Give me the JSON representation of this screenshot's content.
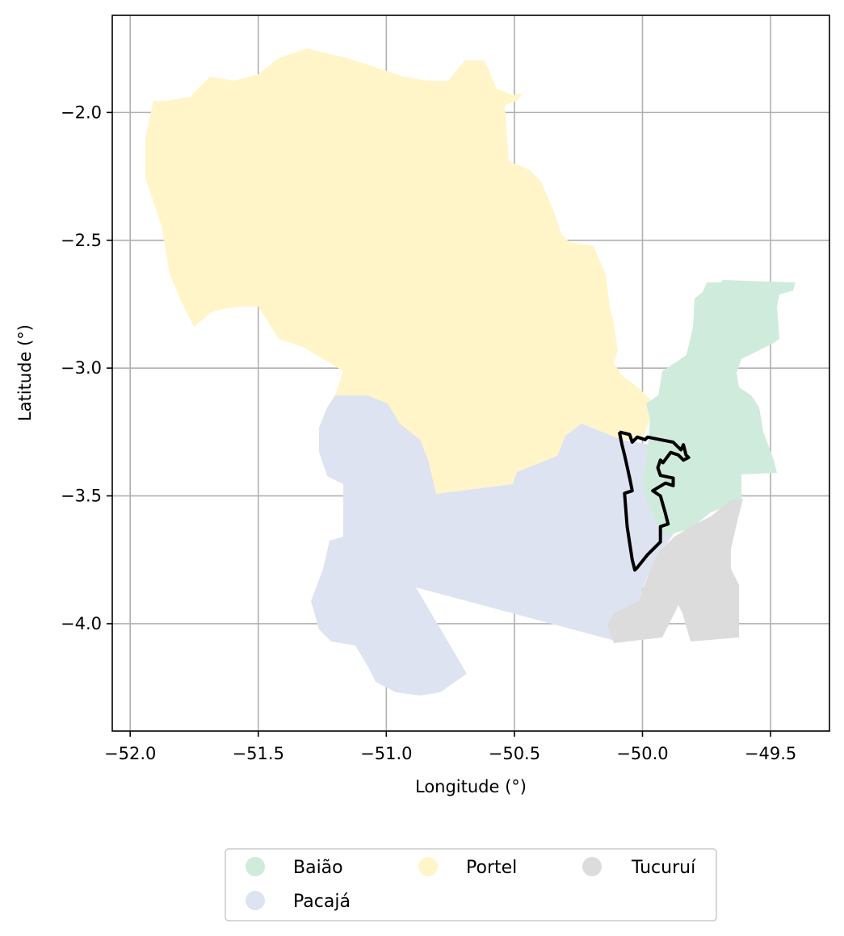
{
  "chart_data": {
    "type": "map",
    "xlabel": "Longitude (°)",
    "ylabel": "Latitude (°)",
    "xlim": [
      -52.07,
      -49.27
    ],
    "ylim": [
      -4.42,
      -1.62
    ],
    "x_ticks": [
      {
        "value": -52.0,
        "label": "−52.0"
      },
      {
        "value": -51.5,
        "label": "−51.5"
      },
      {
        "value": -51.0,
        "label": "−51.0"
      },
      {
        "value": -50.5,
        "label": "−50.5"
      },
      {
        "value": -50.0,
        "label": "−50.0"
      },
      {
        "value": -49.5,
        "label": "−49.5"
      }
    ],
    "y_ticks": [
      {
        "value": -2.0,
        "label": "−2.0"
      },
      {
        "value": -2.5,
        "label": "−2.5"
      },
      {
        "value": -3.0,
        "label": "−3.0"
      },
      {
        "value": -3.5,
        "label": "−3.5"
      },
      {
        "value": -4.0,
        "label": "−4.0"
      }
    ],
    "grid": true,
    "legend_position": "bottom-center",
    "regions": [
      {
        "name": "Baião",
        "color": "#cfebdc"
      },
      {
        "name": "Pacajá",
        "color": "#dee3f1"
      },
      {
        "name": "Portel",
        "color": "#fff5c9"
      },
      {
        "name": "Tucuruí",
        "color": "#dcdcdc"
      }
    ],
    "outline": {
      "color": "#000000",
      "points": [
        [
          -50.09,
          -3.25
        ],
        [
          -50.05,
          -3.26
        ],
        [
          -50.04,
          -3.29
        ],
        [
          -50.02,
          -3.27
        ],
        [
          -49.99,
          -3.28
        ],
        [
          -49.98,
          -3.27
        ],
        [
          -49.93,
          -3.28
        ],
        [
          -49.88,
          -3.29
        ],
        [
          -49.85,
          -3.32
        ],
        [
          -49.84,
          -3.3
        ],
        [
          -49.83,
          -3.34
        ],
        [
          -49.82,
          -3.35
        ],
        [
          -49.84,
          -3.36
        ],
        [
          -49.86,
          -3.34
        ],
        [
          -49.89,
          -3.33
        ],
        [
          -49.92,
          -3.37
        ],
        [
          -49.93,
          -3.36
        ],
        [
          -49.94,
          -3.39
        ],
        [
          -49.93,
          -3.42
        ],
        [
          -49.88,
          -3.43
        ],
        [
          -49.88,
          -3.46
        ],
        [
          -49.91,
          -3.45
        ],
        [
          -49.96,
          -3.48
        ],
        [
          -49.93,
          -3.5
        ],
        [
          -49.91,
          -3.57
        ],
        [
          -49.9,
          -3.61
        ],
        [
          -49.93,
          -3.62
        ],
        [
          -49.93,
          -3.68
        ],
        [
          -49.98,
          -3.73
        ],
        [
          -50.02,
          -3.78
        ],
        [
          -50.03,
          -3.79
        ],
        [
          -50.04,
          -3.75
        ],
        [
          -50.06,
          -3.62
        ],
        [
          -50.07,
          -3.49
        ],
        [
          -50.04,
          -3.48
        ],
        [
          -50.05,
          -3.43
        ],
        [
          -50.07,
          -3.34
        ],
        [
          -50.08,
          -3.3
        ],
        [
          -50.09,
          -3.25
        ]
      ]
    }
  }
}
